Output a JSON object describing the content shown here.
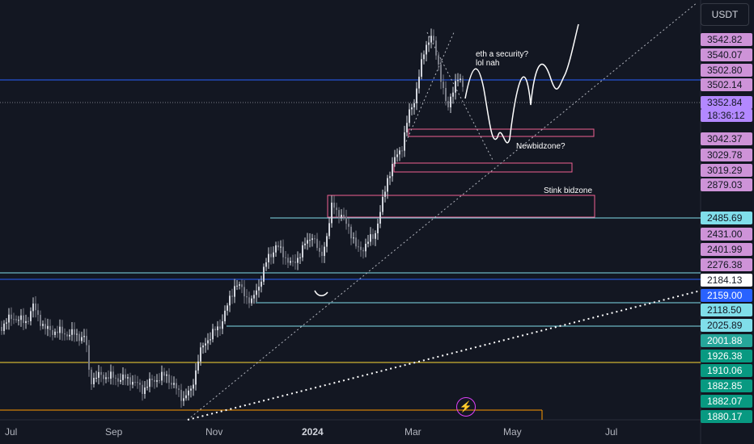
{
  "currency_label": "USDT",
  "chart_data": {
    "type": "candlestick",
    "x_tick_labels": [
      "Jul",
      "Sep",
      "Nov",
      "2024",
      "Mar",
      "May",
      "Jul"
    ],
    "y_axis_labels": [
      {
        "value": "3542.82",
        "style": "level"
      },
      {
        "value": "3540.07",
        "style": "level"
      },
      {
        "value": "3502.80",
        "style": "level"
      },
      {
        "value": "3502.14",
        "style": "level"
      },
      {
        "value": "3352.84",
        "style": "current"
      },
      {
        "value": "18:36:12",
        "style": "current"
      },
      {
        "value": "3042.37",
        "style": "level"
      },
      {
        "value": "3029.78",
        "style": "level"
      },
      {
        "value": "3019.29",
        "style": "level"
      },
      {
        "value": "2879.03",
        "style": "level"
      },
      {
        "value": "2485.69",
        "style": "cyan"
      },
      {
        "value": "2431.00",
        "style": "level"
      },
      {
        "value": "2401.99",
        "style": "level"
      },
      {
        "value": "2276.38",
        "style": "level"
      },
      {
        "value": "2184.13",
        "style": "white"
      },
      {
        "value": "2159.00",
        "style": "blue"
      },
      {
        "value": "2118.50",
        "style": "cyan"
      },
      {
        "value": "2025.89",
        "style": "cyan"
      },
      {
        "value": "2001.88",
        "style": "teal"
      },
      {
        "value": "1926.38",
        "style": "green"
      },
      {
        "value": "1910.06",
        "style": "green"
      },
      {
        "value": "1882.85",
        "style": "green"
      },
      {
        "value": "1882.07",
        "style": "green"
      },
      {
        "value": "1880.17",
        "style": "green"
      }
    ],
    "annotations": [
      {
        "text": "eth a security?"
      },
      {
        "text": "lol nah"
      },
      {
        "text": "Newbidzone?"
      },
      {
        "text": "Stink bidzone"
      }
    ]
  },
  "colors": {
    "background": "#131722",
    "up_candle": "#d1d4dc",
    "down_candle": "#787b86",
    "level_label": "#ce93d8",
    "current_label": "#b388ff",
    "cyan_line": "#80deea",
    "blue_line": "#2962ff",
    "zone_border": "#f06292",
    "green_label": "#089981",
    "orange_line": "#ff9800",
    "yellow_line": "#fdd835"
  },
  "icons": {
    "alert": "lightning-icon"
  }
}
